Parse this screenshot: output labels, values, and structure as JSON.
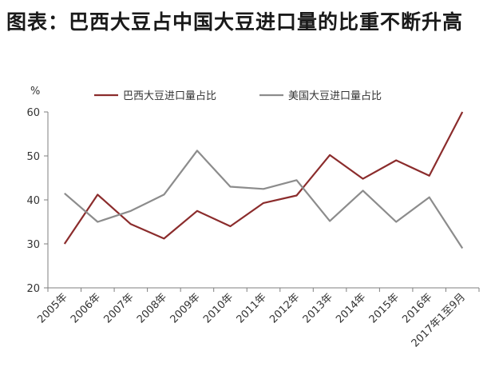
{
  "page": {
    "title": "图表：巴西大豆占中国大豆进口量的比重不断升高"
  },
  "chart_data": {
    "type": "line",
    "title": "",
    "xlabel": "",
    "ylabel": "%",
    "ylim": [
      20,
      60
    ],
    "yticks": [
      20,
      30,
      40,
      50,
      60
    ],
    "grid": false,
    "legend_position": "top",
    "categories": [
      "2005年",
      "2006年",
      "2007年",
      "2008年",
      "2009年",
      "2010年",
      "2011年",
      "2012年",
      "2013年",
      "2014年",
      "2015年",
      "2016年",
      "2017年1至9月"
    ],
    "series": [
      {
        "name": "巴西大豆进口量占比",
        "color": "#8b2c2c",
        "values": [
          30.0,
          41.2,
          34.5,
          31.2,
          37.5,
          34.0,
          39.3,
          41.0,
          50.2,
          44.8,
          49.0,
          45.5,
          60.0
        ]
      },
      {
        "name": "美国大豆进口量占比",
        "color": "#8c8c8c",
        "values": [
          41.5,
          35.0,
          37.5,
          41.2,
          51.2,
          43.0,
          42.5,
          44.5,
          35.2,
          42.1,
          35.0,
          40.6,
          29.0
        ]
      }
    ]
  }
}
